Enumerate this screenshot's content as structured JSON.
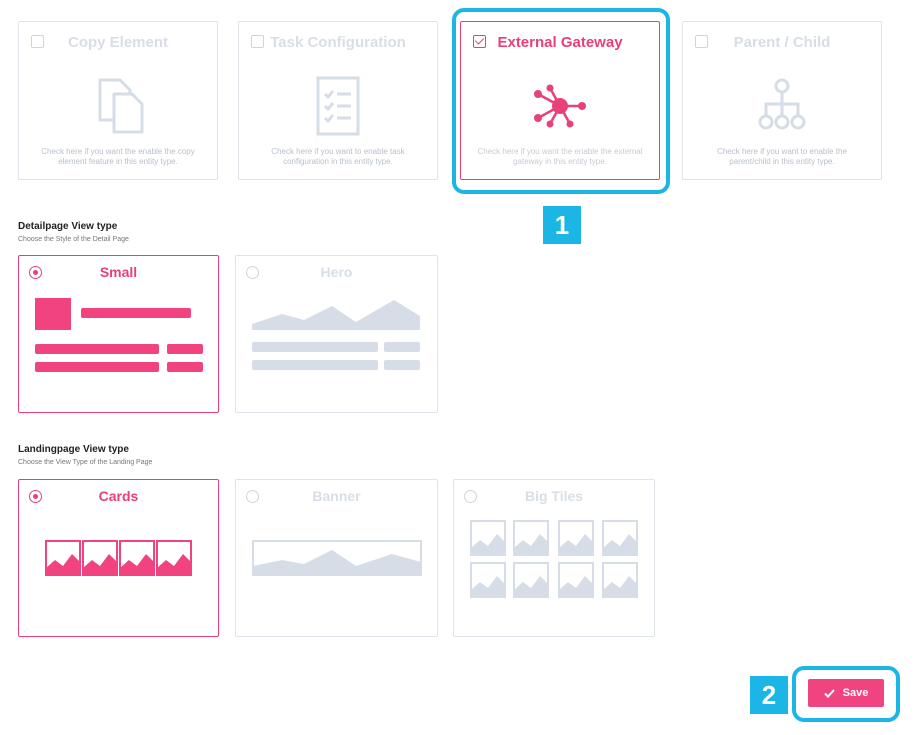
{
  "features": [
    {
      "title": "Copy Element",
      "description": "Check here if you want the enable the copy element feature in this entity type.",
      "checked": false,
      "icon": "copy-icon"
    },
    {
      "title": "Task Configuration",
      "description": "Check here if you want to enable task configuration in this entity type.",
      "checked": false,
      "icon": "task-list-icon"
    },
    {
      "title": "External Gateway",
      "description": "Check here if you want the enable the external gateway in this entity type.",
      "checked": true,
      "icon": "network-hub-icon"
    },
    {
      "title": "Parent / Child",
      "description": "Check here if you want to enable the parent/child in this entity type.",
      "checked": false,
      "icon": "hierarchy-icon"
    }
  ],
  "detailpage": {
    "title": "Detailpage View type",
    "subtitle": "Choose the Style of the Detail Page",
    "options": [
      {
        "label": "Small",
        "selected": true
      },
      {
        "label": "Hero",
        "selected": false
      }
    ]
  },
  "landingpage": {
    "title": "Landingpage View type",
    "subtitle": "Choose the View Type of the Landing Page",
    "options": [
      {
        "label": "Cards",
        "selected": true
      },
      {
        "label": "Banner",
        "selected": false
      },
      {
        "label": "Big Tiles",
        "selected": false
      }
    ]
  },
  "save_label": "Save",
  "annotations": {
    "step1": "1",
    "step2": "2"
  },
  "colors": {
    "accent": "#e8407a",
    "highlight": "#1bb6e6",
    "inactive": "#d6dde6"
  }
}
